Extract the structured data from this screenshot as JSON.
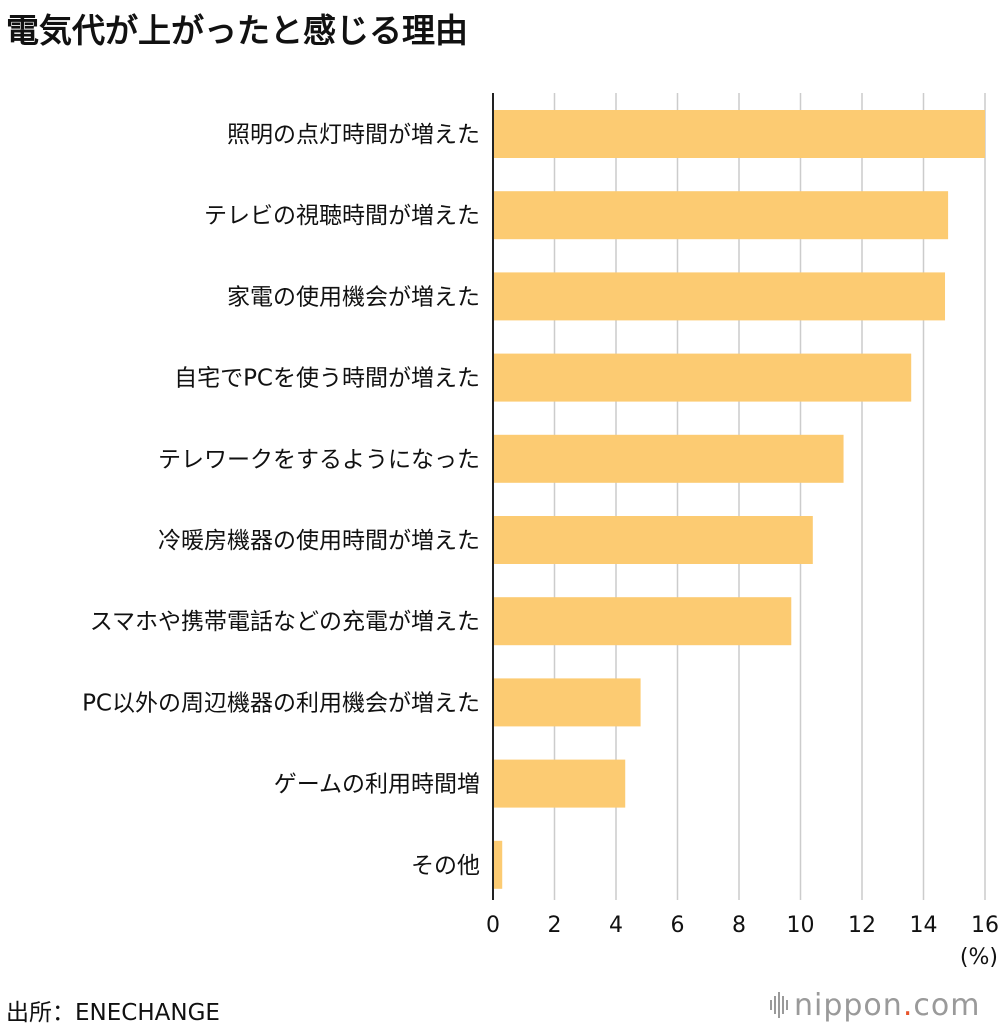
{
  "title": "電気代が上がったと感じる理由",
  "source": "出所：ENECHANGE",
  "brand": {
    "name": "nippon",
    "dot": ".",
    "tld": "com",
    "icon": "sound-bars-icon"
  },
  "colors": {
    "bar": "#FCCB72",
    "grid": "#CCCCCC",
    "axis": "#222222",
    "brand_dot": "#E8542A"
  },
  "chart_data": {
    "type": "bar",
    "orientation": "horizontal",
    "title": "電気代が上がったと感じる理由",
    "xlabel": "(%)",
    "ylabel": "",
    "xlim": [
      0,
      16
    ],
    "xticks": [
      0,
      2,
      4,
      6,
      8,
      10,
      12,
      14,
      16
    ],
    "grid": true,
    "categories": [
      "照明の点灯時間が増えた",
      "テレビの視聴時間が増えた",
      "家電の使用機会が増えた",
      "自宅でPCを使う時間が増えた",
      "テレワークをするようになった",
      "冷暖房機器の使用時間が増えた",
      "スマホや携帯電話などの充電が増えた",
      "PC以外の周辺機器の利用機会が増えた",
      "ゲームの利用時間増",
      "その他"
    ],
    "values": [
      16.0,
      14.8,
      14.7,
      13.6,
      11.4,
      10.4,
      9.7,
      4.8,
      4.3,
      0.3
    ]
  }
}
